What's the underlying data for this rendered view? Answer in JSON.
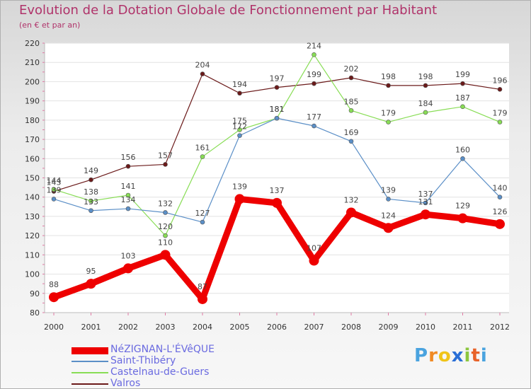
{
  "header": {
    "title": "Evolution de la Dotation Globale de Fonctionnement par Habitant",
    "subtitle": "(en € et par an)"
  },
  "chart_data": {
    "type": "line",
    "title": "Evolution de la Dotation Globale de Fonctionnement par Habitant",
    "subtitle": "(en € et par an)",
    "xlabel": "",
    "ylabel": "",
    "ylim": [
      80,
      220
    ],
    "yticks": [
      80,
      90,
      100,
      110,
      120,
      130,
      140,
      150,
      160,
      170,
      180,
      190,
      200,
      210,
      220
    ],
    "grid": "horizontal",
    "categories": [
      "2000",
      "2001",
      "2002",
      "2003",
      "2004",
      "2005",
      "2006",
      "2007",
      "2008",
      "2009",
      "2010",
      "2011",
      "2012"
    ],
    "series": [
      {
        "name": "NéZIGNAN-L'ÉVêQUE",
        "color": "#ee0000",
        "values": [
          88,
          95,
          103,
          110,
          87,
          139,
          137,
          107,
          132,
          124,
          131,
          129,
          126
        ],
        "labels": [
          "88",
          "95",
          "103",
          "110",
          "87",
          "139",
          "137",
          "107",
          "132",
          "124",
          "131",
          "129",
          "126"
        ]
      },
      {
        "name": "Saint-Thibéry",
        "color": "#5b8fc7",
        "values": [
          139,
          133,
          134,
          132,
          127,
          172,
          181,
          177,
          169,
          139,
          137,
          160,
          140
        ],
        "labels": [
          "139",
          "133",
          "134",
          "132",
          "127",
          "172",
          "181",
          "177",
          "169",
          "139",
          "137",
          "160",
          "140"
        ]
      },
      {
        "name": "Castelnau-de-Guers",
        "color": "#88dd55",
        "values": [
          144,
          138,
          141,
          120,
          161,
          175,
          181,
          214,
          185,
          179,
          184,
          187,
          179
        ],
        "labels": [
          "144",
          "138",
          "141",
          "120",
          "161",
          "175",
          "181",
          "214",
          "185",
          "179",
          "184",
          "187",
          "179"
        ]
      },
      {
        "name": "Valros",
        "color": "#6b1a1a",
        "values": [
          143,
          149,
          156,
          157,
          204,
          194,
          197,
          199,
          202,
          198,
          198,
          199,
          196
        ],
        "labels": [
          "143",
          "149",
          "156",
          "157",
          "204",
          "194",
          "197",
          "199",
          "202",
          "198",
          "198",
          "199",
          "196"
        ]
      }
    ]
  },
  "legend": {
    "items": [
      {
        "label": "NéZIGNAN-L'ÉVêQUE",
        "color": "#ee0000"
      },
      {
        "label": "Saint-Thibéry",
        "color": "#5b8fc7"
      },
      {
        "label": "Castelnau-de-Guers",
        "color": "#88dd55"
      },
      {
        "label": "Valros",
        "color": "#6b1a1a"
      }
    ]
  },
  "logo": {
    "text": "Proxiti",
    "letter_colors": [
      "#4aa3df",
      "#f08a24",
      "#f0c419",
      "#2a6fd6",
      "#8cc63f",
      "#e8632a",
      "#4aa3df"
    ]
  }
}
